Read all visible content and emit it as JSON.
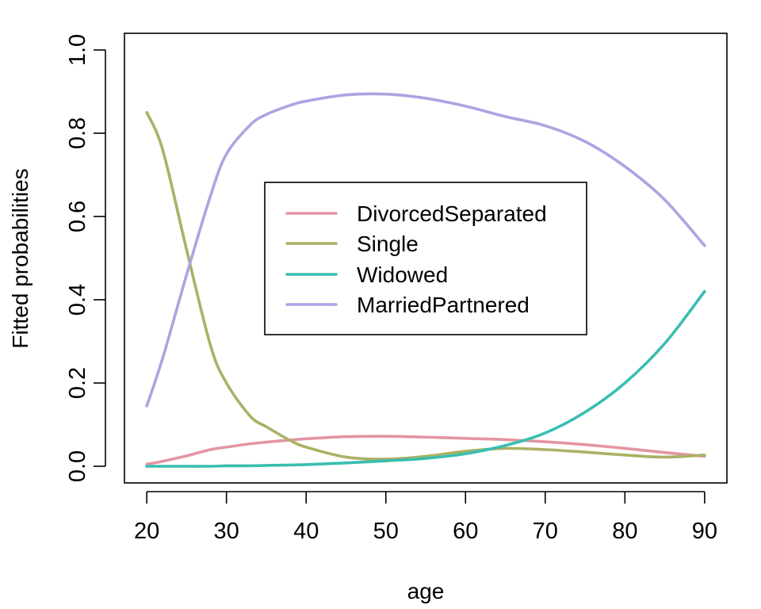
{
  "chart_data": {
    "type": "line",
    "title": "",
    "xlabel": "age",
    "ylabel": "Fitted probabilities",
    "xlim": [
      17.2,
      92.8
    ],
    "ylim": [
      -0.04,
      1.04
    ],
    "xticks": [
      20,
      30,
      40,
      50,
      60,
      70,
      80,
      90
    ],
    "yticks": [
      0.0,
      0.2,
      0.4,
      0.6,
      0.8,
      1.0
    ],
    "xtick_labels": [
      "20",
      "30",
      "40",
      "50",
      "60",
      "70",
      "80",
      "90"
    ],
    "ytick_labels": [
      "0.0",
      "0.2",
      "0.4",
      "0.6",
      "0.8",
      "1.0"
    ],
    "grid": false,
    "legend_position": "center",
    "x": [
      20,
      22,
      25,
      28,
      30,
      33,
      35,
      38,
      40,
      45,
      50,
      55,
      60,
      65,
      70,
      75,
      80,
      85,
      90
    ],
    "series": [
      {
        "name": "DivorcedSeparated",
        "color": "#E495A5",
        "values": [
          0.005,
          0.012,
          0.025,
          0.04,
          0.046,
          0.054,
          0.058,
          0.063,
          0.066,
          0.071,
          0.072,
          0.07,
          0.067,
          0.064,
          0.059,
          0.052,
          0.043,
          0.033,
          0.024
        ]
      },
      {
        "name": "Single",
        "color": "#ABB065",
        "values": [
          0.85,
          0.76,
          0.52,
          0.29,
          0.2,
          0.12,
          0.095,
          0.062,
          0.046,
          0.022,
          0.017,
          0.024,
          0.036,
          0.043,
          0.04,
          0.034,
          0.027,
          0.022,
          0.027
        ]
      },
      {
        "name": "Widowed",
        "color": "#39BEB1",
        "values": [
          0.0,
          0.0,
          0.0,
          0.0,
          0.001,
          0.001,
          0.002,
          0.003,
          0.004,
          0.008,
          0.013,
          0.019,
          0.03,
          0.05,
          0.08,
          0.13,
          0.2,
          0.295,
          0.42
        ]
      },
      {
        "name": "MarriedPartnered",
        "color": "#ACA4E2",
        "values": [
          0.145,
          0.26,
          0.46,
          0.65,
          0.75,
          0.82,
          0.845,
          0.867,
          0.877,
          0.892,
          0.894,
          0.884,
          0.865,
          0.84,
          0.818,
          0.78,
          0.72,
          0.64,
          0.53
        ]
      }
    ]
  }
}
